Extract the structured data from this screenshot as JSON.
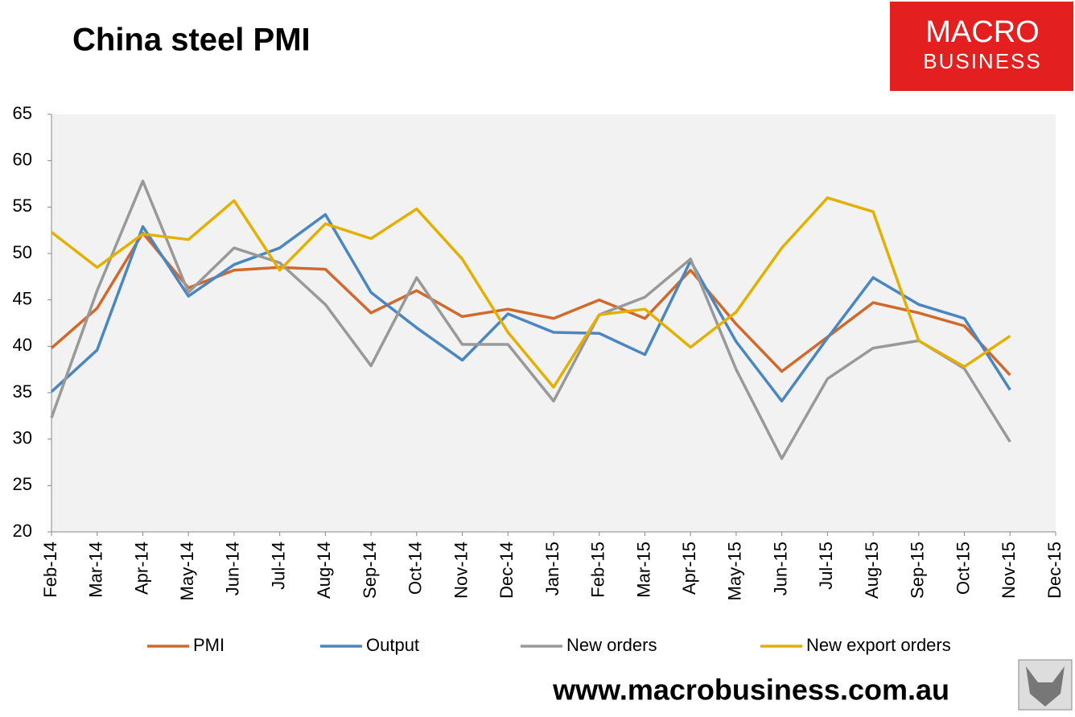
{
  "chart_data": {
    "type": "line",
    "title": "China steel PMI",
    "categories": [
      "Feb-14",
      "Mar-14",
      "Apr-14",
      "May-14",
      "Jun-14",
      "Jul-14",
      "Aug-14",
      "Sep-14",
      "Oct-14",
      "Nov-14",
      "Dec-14",
      "Jan-15",
      "Feb-15",
      "Mar-15",
      "Apr-15",
      "May-15",
      "Jun-15",
      "Jul-15",
      "Aug-15",
      "Sep-15",
      "Oct-15",
      "Nov-15",
      "Dec-15"
    ],
    "series": [
      {
        "name": "PMI",
        "color": "#d0692b",
        "values": [
          39.8,
          44.1,
          52.2,
          46.3,
          48.2,
          48.5,
          48.3,
          43.6,
          46.0,
          43.2,
          44.0,
          43.0,
          45.0,
          43.0,
          48.2,
          42.4,
          37.3,
          41.0,
          44.7,
          43.6,
          42.2,
          36.9,
          null
        ]
      },
      {
        "name": "Output",
        "color": "#4a86bf",
        "values": [
          35.1,
          39.6,
          52.9,
          45.4,
          48.8,
          50.6,
          54.2,
          45.8,
          42.0,
          38.5,
          43.5,
          41.5,
          41.4,
          39.1,
          49.2,
          40.5,
          34.1,
          40.9,
          47.4,
          44.5,
          43.0,
          35.3,
          null
        ]
      },
      {
        "name": "New orders",
        "color": "#999999",
        "values": [
          32.3,
          46.0,
          57.8,
          45.8,
          50.6,
          49.0,
          44.5,
          37.9,
          47.4,
          40.2,
          40.2,
          34.1,
          43.4,
          45.3,
          49.4,
          37.5,
          27.9,
          36.5,
          39.8,
          40.6,
          37.6,
          29.7,
          null
        ]
      },
      {
        "name": "New export orders",
        "color": "#e4b000",
        "values": [
          52.3,
          48.5,
          52.1,
          51.5,
          55.7,
          48.2,
          53.2,
          51.6,
          54.8,
          49.4,
          41.5,
          35.6,
          43.4,
          44.0,
          39.9,
          43.7,
          50.6,
          56.0,
          54.5,
          40.6,
          37.8,
          41.1,
          null
        ]
      }
    ],
    "ylim": [
      20,
      65
    ],
    "yticks": [
      20,
      25,
      30,
      35,
      40,
      45,
      50,
      55,
      60,
      65
    ],
    "grid": false,
    "legend": "bottom"
  },
  "logo": {
    "line1": "MACRO",
    "line2": "BUSINESS"
  },
  "footer": "www.macrobusiness.com.au"
}
